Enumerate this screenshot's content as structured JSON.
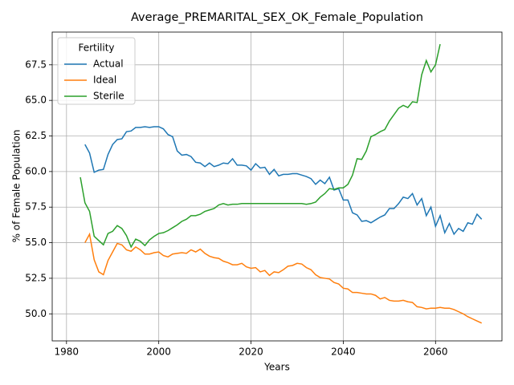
{
  "chart_data": {
    "type": "line",
    "title": "Average_PREMARITAL_SEX_OK_Female_Population",
    "x_label": "Years",
    "y_label": "% of Female Population",
    "legend_title": "Fertility",
    "legend": "upper left",
    "grid": true,
    "x": [
      1983,
      1984,
      1985,
      1986,
      1987,
      1988,
      1989,
      1990,
      1991,
      1992,
      1993,
      1994,
      1995,
      1996,
      1997,
      1998,
      1999,
      2000,
      2001,
      2002,
      2003,
      2004,
      2005,
      2006,
      2007,
      2008,
      2009,
      2010,
      2011,
      2012,
      2013,
      2014,
      2015,
      2016,
      2017,
      2018,
      2019,
      2020,
      2021,
      2022,
      2023,
      2024,
      2025,
      2026,
      2027,
      2028,
      2029,
      2030,
      2031,
      2032,
      2033,
      2034,
      2035,
      2036,
      2037,
      2038,
      2039,
      2040,
      2041,
      2042,
      2043,
      2044,
      2045,
      2046,
      2047,
      2048,
      2049,
      2050,
      2051,
      2052,
      2053,
      2054,
      2055,
      2056,
      2057,
      2058,
      2059,
      2060,
      2061,
      2062,
      2063,
      2064,
      2065,
      2066,
      2067,
      2068,
      2069,
      2070
    ],
    "series": [
      {
        "name": "Actual",
        "color": "#1f77b4",
        "values": [
          null,
          61.9,
          61.3,
          59.95,
          60.1,
          60.15,
          61.2,
          61.9,
          62.25,
          62.3,
          62.8,
          62.85,
          63.1,
          63.1,
          63.15,
          63.1,
          63.15,
          63.15,
          63.0,
          62.6,
          62.45,
          61.45,
          61.15,
          61.2,
          61.05,
          60.65,
          60.6,
          60.35,
          60.6,
          60.35,
          60.45,
          60.6,
          60.55,
          60.9,
          60.45,
          60.45,
          60.4,
          60.1,
          60.55,
          60.25,
          60.3,
          59.8,
          60.15,
          59.7,
          59.8,
          59.8,
          59.85,
          59.85,
          59.75,
          59.65,
          59.5,
          59.1,
          59.4,
          59.15,
          59.6,
          58.7,
          58.8,
          58.0,
          58.0,
          57.1,
          56.95,
          56.5,
          56.55,
          56.4,
          56.6,
          56.8,
          56.95,
          57.4,
          57.4,
          57.75,
          58.2,
          58.1,
          58.45,
          57.65,
          58.1,
          56.9,
          57.5,
          56.15,
          56.9,
          55.7,
          56.35,
          55.6,
          56.0,
          55.8,
          56.4,
          56.3,
          57.0,
          56.65
        ]
      },
      {
        "name": "Ideal",
        "color": "#ff7f0e",
        "values": [
          null,
          55.0,
          55.6,
          53.8,
          52.95,
          52.75,
          53.75,
          54.35,
          54.95,
          54.85,
          54.5,
          54.4,
          54.7,
          54.5,
          54.2,
          54.2,
          54.3,
          54.35,
          54.1,
          54.0,
          54.2,
          54.25,
          54.3,
          54.25,
          54.5,
          54.35,
          54.55,
          54.25,
          54.05,
          53.95,
          53.9,
          53.7,
          53.6,
          53.45,
          53.45,
          53.55,
          53.3,
          53.2,
          53.25,
          52.95,
          53.05,
          52.7,
          52.95,
          52.9,
          53.1,
          53.35,
          53.4,
          53.55,
          53.5,
          53.25,
          53.1,
          52.75,
          52.55,
          52.5,
          52.45,
          52.2,
          52.1,
          51.8,
          51.75,
          51.5,
          51.5,
          51.45,
          51.4,
          51.4,
          51.3,
          51.05,
          51.15,
          50.95,
          50.9,
          50.9,
          50.95,
          50.85,
          50.8,
          50.5,
          50.45,
          50.35,
          50.4,
          50.4,
          50.45,
          50.4,
          50.4,
          50.3,
          50.15,
          50.0,
          49.8,
          49.65,
          49.5,
          49.35
        ]
      },
      {
        "name": "Sterile",
        "color": "#2ca02c",
        "values": [
          59.6,
          57.8,
          57.2,
          55.45,
          55.15,
          54.85,
          55.65,
          55.8,
          56.2,
          56.0,
          55.5,
          54.7,
          55.25,
          55.1,
          54.8,
          55.2,
          55.45,
          55.65,
          55.7,
          55.85,
          56.05,
          56.25,
          56.5,
          56.65,
          56.9,
          56.9,
          57.0,
          57.2,
          57.3,
          57.4,
          57.65,
          57.75,
          57.65,
          57.7,
          57.7,
          57.75,
          57.75,
          57.75,
          57.75,
          57.75,
          57.75,
          57.75,
          57.75,
          57.75,
          57.75,
          57.75,
          57.75,
          57.75,
          57.75,
          57.7,
          57.75,
          57.85,
          58.2,
          58.45,
          58.8,
          58.75,
          58.85,
          58.85,
          59.1,
          59.75,
          60.9,
          60.85,
          61.45,
          62.45,
          62.6,
          62.8,
          62.95,
          63.55,
          64.0,
          64.45,
          64.65,
          64.5,
          64.9,
          64.85,
          66.8,
          67.8,
          67.0,
          67.5,
          68.95,
          null,
          null,
          null,
          null,
          null,
          null,
          null,
          null,
          null
        ]
      }
    ],
    "xlim": [
      1976.9,
      2074.4
    ],
    "xticks": [
      1980,
      2000,
      2020,
      2040,
      2060
    ],
    "ylim": [
      48.1,
      69.8
    ],
    "yticks": [
      {
        "value": 50,
        "label": "50.0"
      },
      52.5,
      {
        "value": 55,
        "label": "55.0"
      },
      57.5,
      {
        "value": 60,
        "label": "60.0"
      },
      62.5,
      {
        "value": 65,
        "label": "65.0"
      },
      67.5
    ]
  }
}
